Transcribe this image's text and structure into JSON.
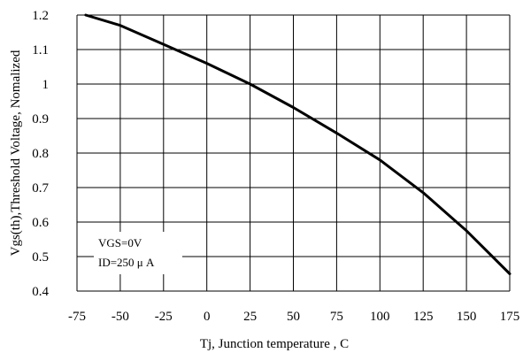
{
  "chart_data": {
    "type": "line",
    "title": "",
    "xlabel": "Tj, Junction temperature , C",
    "ylabel": "Vgs(th),Threshold Voltage, Nomalized",
    "xlim": [
      -75,
      175
    ],
    "ylim": [
      0.4,
      1.2
    ],
    "xticks": [
      "-75",
      "-50",
      "-25",
      "0",
      "25",
      "50",
      "75",
      "100",
      "125",
      "150",
      "175"
    ],
    "yticks": [
      "0.4",
      "0.5",
      "0.6",
      "0.7",
      "0.8",
      "0.9",
      "1",
      "1.1",
      "1.2"
    ],
    "grid": true,
    "annotations": [
      "VGS=0V",
      "ID=250 μ A"
    ],
    "series": [
      {
        "x": [
          -70,
          -50,
          -25,
          0,
          25,
          50,
          75,
          100,
          125,
          150,
          175
        ],
        "y": [
          1.2,
          1.17,
          1.115,
          1.06,
          1.0,
          0.932,
          0.858,
          0.78,
          0.685,
          0.575,
          0.45
        ]
      }
    ]
  },
  "colors": {
    "line": "#000000",
    "grid": "#000000",
    "background": "#ffffff"
  }
}
